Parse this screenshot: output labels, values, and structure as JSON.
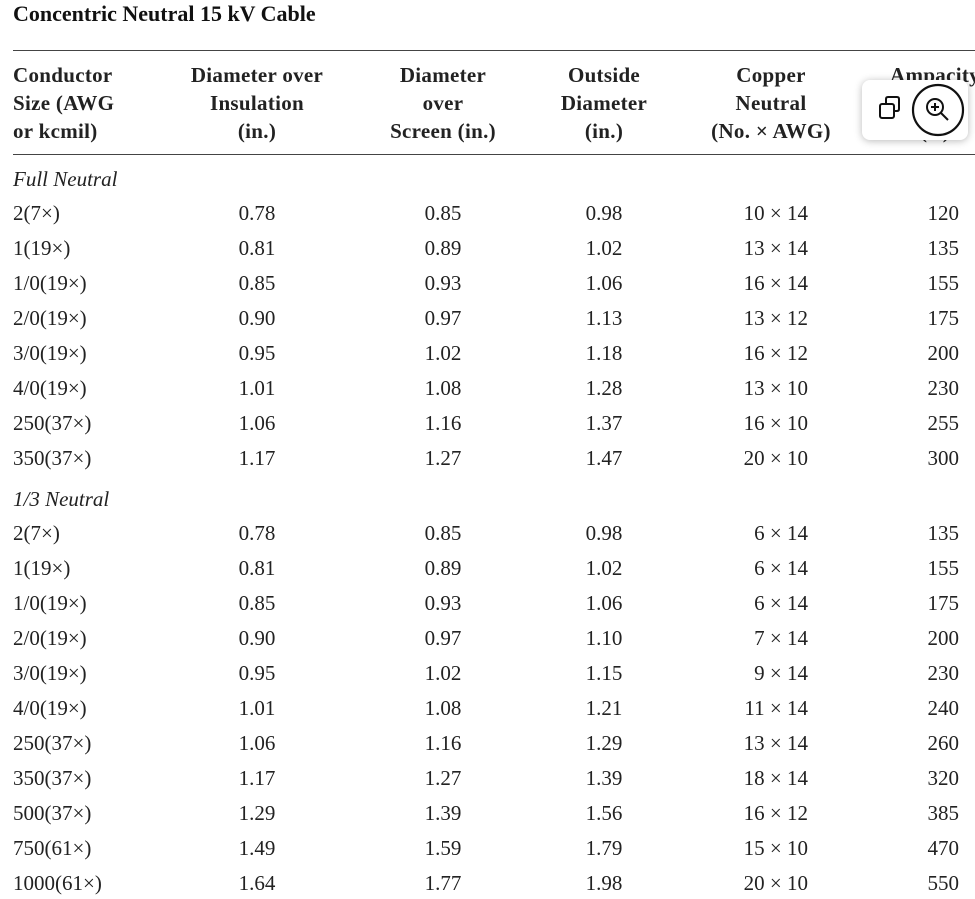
{
  "title": "Concentric Neutral 15 kV Cable",
  "table": {
    "headers": [
      [
        "Conductor",
        "Size (AWG",
        "or kcmil)"
      ],
      [
        "Diameter over",
        "Insulation",
        "(in.)"
      ],
      [
        "Diameter",
        "over",
        "Screen (in.)"
      ],
      [
        "Outside",
        "Diameter",
        "(in.)"
      ],
      [
        "Copper",
        "Neutral",
        "(No. × AWG)"
      ],
      [
        "Ampacity",
        "",
        "(A)"
      ]
    ],
    "sections": [
      {
        "label": "Full Neutral",
        "rows": [
          [
            "2(7×)",
            "0.78",
            "0.85",
            "0.98",
            "10 × 14",
            "120"
          ],
          [
            "1(19×)",
            "0.81",
            "0.89",
            "1.02",
            "13 × 14",
            "135"
          ],
          [
            "1/0(19×)",
            "0.85",
            "0.93",
            "1.06",
            "16 × 14",
            "155"
          ],
          [
            "2/0(19×)",
            "0.90",
            "0.97",
            "1.13",
            "13 × 12",
            "175"
          ],
          [
            "3/0(19×)",
            "0.95",
            "1.02",
            "1.18",
            "16 × 12",
            "200"
          ],
          [
            "4/0(19×)",
            "1.01",
            "1.08",
            "1.28",
            "13 × 10",
            "230"
          ],
          [
            "250(37×)",
            "1.06",
            "1.16",
            "1.37",
            "16 × 10",
            "255"
          ],
          [
            "350(37×)",
            "1.17",
            "1.27",
            "1.47",
            "20 × 10",
            "300"
          ]
        ]
      },
      {
        "label": "1/3 Neutral",
        "rows": [
          [
            "2(7×)",
            "0.78",
            "0.85",
            "0.98",
            "6 × 14",
            "135"
          ],
          [
            "1(19×)",
            "0.81",
            "0.89",
            "1.02",
            "6 × 14",
            "155"
          ],
          [
            "1/0(19×)",
            "0.85",
            "0.93",
            "1.06",
            "6 × 14",
            "175"
          ],
          [
            "2/0(19×)",
            "0.90",
            "0.97",
            "1.10",
            "7 × 14",
            "200"
          ],
          [
            "3/0(19×)",
            "0.95",
            "1.02",
            "1.15",
            "9 × 14",
            "230"
          ],
          [
            "4/0(19×)",
            "1.01",
            "1.08",
            "1.21",
            "11 × 14",
            "240"
          ],
          [
            "250(37×)",
            "1.06",
            "1.16",
            "1.29",
            "13 × 14",
            "260"
          ],
          [
            "350(37×)",
            "1.17",
            "1.27",
            "1.39",
            "18 × 14",
            "320"
          ],
          [
            "500(37×)",
            "1.29",
            "1.39",
            "1.56",
            "16 × 12",
            "385"
          ],
          [
            "750(61×)",
            "1.49",
            "1.59",
            "1.79",
            "15 × 10",
            "470"
          ],
          [
            "1000(61×)",
            "1.64",
            "1.77",
            "1.98",
            "20 × 10",
            "550"
          ]
        ]
      }
    ]
  }
}
